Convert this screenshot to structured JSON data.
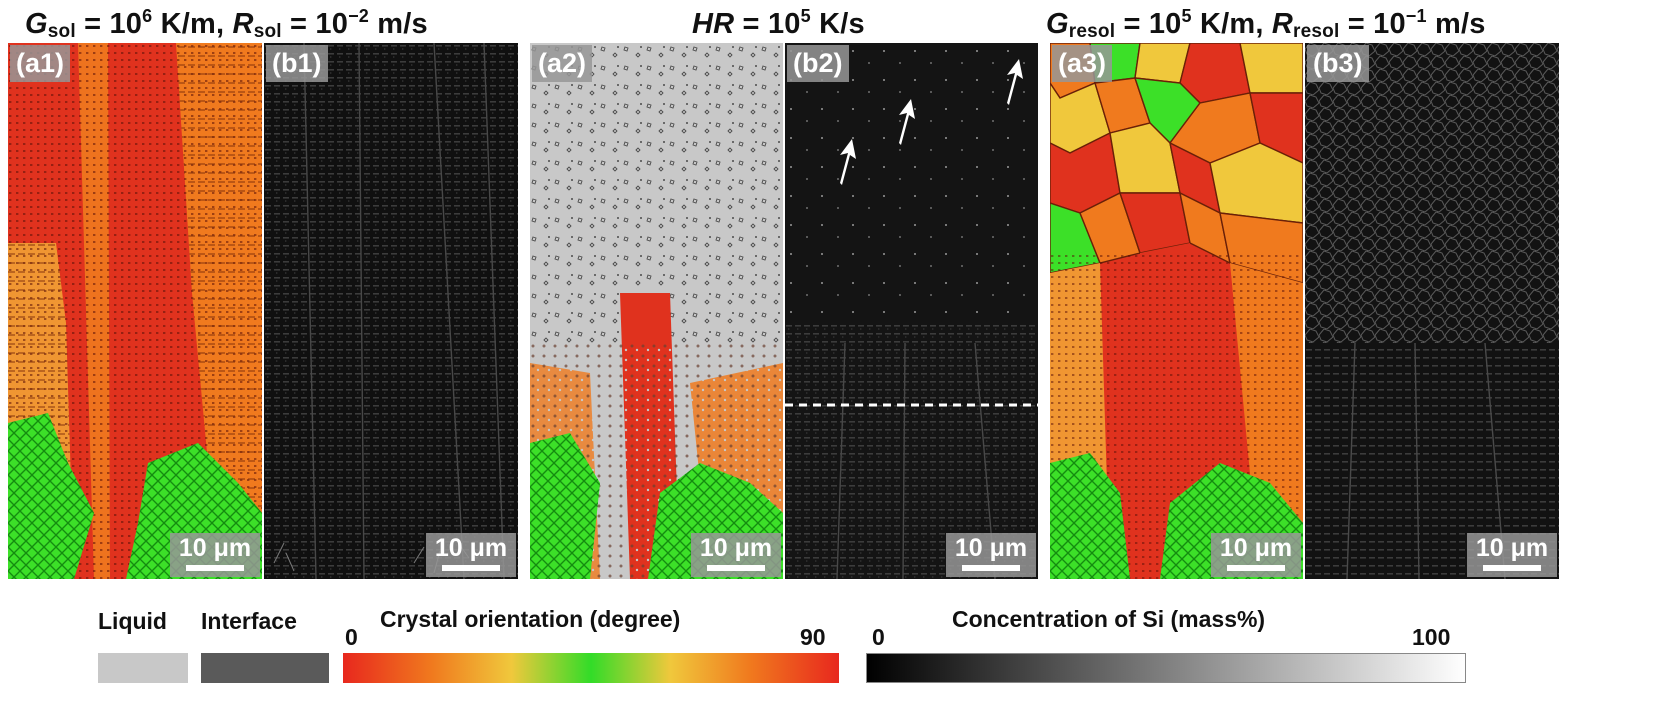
{
  "titles": {
    "group1": {
      "g_letter": "G",
      "g_sub": "sol",
      "g_eq": " = 10",
      "g_exp": "6",
      "g_unit": " K/m, ",
      "r_letter": "R",
      "r_sub": "sol",
      "r_eq": " = 10",
      "r_exp": "−2",
      "r_unit": " m/s"
    },
    "group2": {
      "h_letter": "HR",
      "h_eq": " = 10",
      "h_exp": "5",
      "h_unit": " K/s"
    },
    "group3": {
      "g_letter": "G",
      "g_sub": "resol",
      "g_eq": " = 10",
      "g_exp": "5",
      "g_unit": " K/m, ",
      "r_letter": "R",
      "r_sub": "resol",
      "r_eq": " = 10",
      "r_exp": "−1",
      "r_unit": " m/s"
    }
  },
  "panels": {
    "a1": {
      "label": "(a1)",
      "scale": "10 μm"
    },
    "b1": {
      "label": "(b1)",
      "scale": "10 μm"
    },
    "a2": {
      "label": "(a2)",
      "scale": "10 μm"
    },
    "b2": {
      "label": "(b2)",
      "scale": "10 μm"
    },
    "a3": {
      "label": "(a3)",
      "scale": "10 μm"
    },
    "b3": {
      "label": "(b3)",
      "scale": "10 μm"
    }
  },
  "legend": {
    "liquid": "Liquid",
    "interface": "Interface",
    "orientation_min": "0",
    "orientation_title": "Crystal orientation (degree)",
    "orientation_max": "90",
    "conc_min": "0",
    "conc_title": "Concentration of Si (mass%)",
    "conc_max": "100"
  },
  "colors": {
    "liquid": "#c8c8c8",
    "interface": "#5a5a5a",
    "orientation_gradient": [
      "#e8281e",
      "#f07a1e",
      "#f0c83c",
      "#32dc28",
      "#f0c83c",
      "#f07a1e",
      "#e8281e"
    ],
    "concentration_gradient": [
      "#000000",
      "#ffffff"
    ],
    "grain_red": "#e0321e",
    "grain_orange": "#f07a1e",
    "grain_green": "#3ce028",
    "grain_yellow": "#f0c83c"
  }
}
